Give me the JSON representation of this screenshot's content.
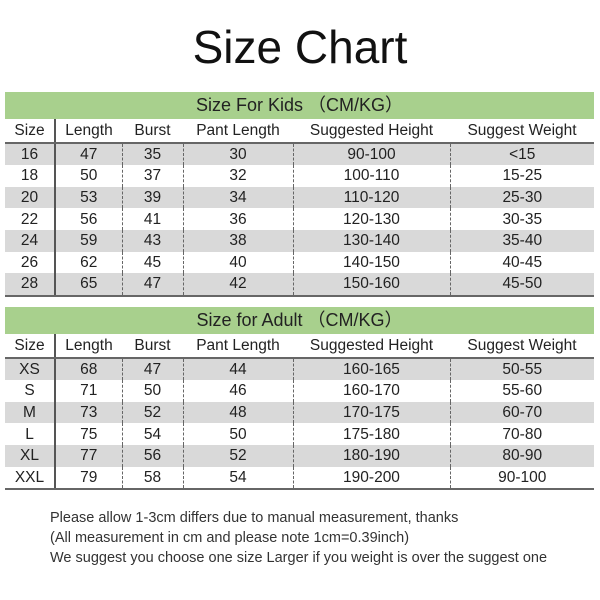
{
  "title": "Size Chart",
  "columns": [
    "Size",
    "Length",
    "Burst",
    "Pant Length",
    "Suggested Height",
    "Suggest Weight"
  ],
  "kids": {
    "heading": "Size For Kids （CM/KG）",
    "rows": [
      [
        "16",
        "47",
        "35",
        "30",
        "90-100",
        "<15"
      ],
      [
        "18",
        "50",
        "37",
        "32",
        "100-110",
        "15-25"
      ],
      [
        "20",
        "53",
        "39",
        "34",
        "110-120",
        "25-30"
      ],
      [
        "22",
        "56",
        "41",
        "36",
        "120-130",
        "30-35"
      ],
      [
        "24",
        "59",
        "43",
        "38",
        "130-140",
        "35-40"
      ],
      [
        "26",
        "62",
        "45",
        "40",
        "140-150",
        "40-45"
      ],
      [
        "28",
        "65",
        "47",
        "42",
        "150-160",
        "45-50"
      ]
    ]
  },
  "adult": {
    "heading": "Size for Adult （CM/KG）",
    "rows": [
      [
        "XS",
        "68",
        "47",
        "44",
        "160-165",
        "50-55"
      ],
      [
        "S",
        "71",
        "50",
        "46",
        "160-170",
        "55-60"
      ],
      [
        "M",
        "73",
        "52",
        "48",
        "170-175",
        "60-70"
      ],
      [
        "L",
        "75",
        "54",
        "50",
        "175-180",
        "70-80"
      ],
      [
        "XL",
        "77",
        "56",
        "52",
        "180-190",
        "80-90"
      ],
      [
        "XXL",
        "79",
        "58",
        "54",
        "190-200",
        "90-100"
      ]
    ]
  },
  "notes": [
    "Please allow 1-3cm differs due to manual measurement, thanks",
    "(All measurement in cm and please note 1cm=0.39inch)",
    "We suggest you choose one size Larger if you weight is over the suggest one"
  ],
  "colors": {
    "header_green": "#a8d08d",
    "stripe_grey": "#d9d9d9"
  }
}
